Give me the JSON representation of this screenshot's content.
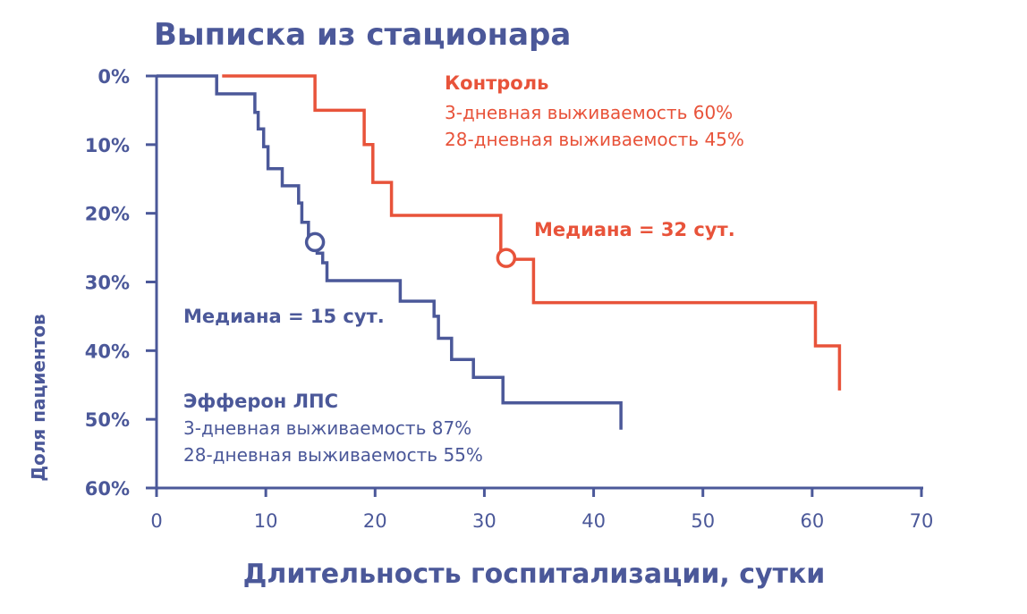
{
  "colors": {
    "axis": "#4b5899",
    "efferon": "#4b5899",
    "control": "#e8533a"
  },
  "chart_data": {
    "type": "line",
    "title": "Выписка из стационара",
    "xlabel": "Длительность госпитализации, сутки",
    "ylabel": "Доля пациентов",
    "xlim": [
      0,
      70
    ],
    "ylim": [
      0,
      60
    ],
    "y_inverted": true,
    "grid": false,
    "x_ticks": [
      "0",
      "10",
      "20",
      "30",
      "40",
      "50",
      "60",
      "70"
    ],
    "y_ticks": [
      "0%",
      "10%",
      "20%",
      "30%",
      "40%",
      "50%",
      "60%"
    ],
    "series": [
      {
        "key": "control",
        "name": "Контроль",
        "color": "#e8533a",
        "step": true,
        "points": [
          [
            6,
            0
          ],
          [
            14.5,
            0
          ],
          [
            14.5,
            5
          ],
          [
            19,
            5
          ],
          [
            19,
            10
          ],
          [
            19.8,
            10
          ],
          [
            19.8,
            15.5
          ],
          [
            21.5,
            15.5
          ],
          [
            21.5,
            20.3
          ],
          [
            31.5,
            20.3
          ],
          [
            31.5,
            26.7
          ],
          [
            34.5,
            26.7
          ],
          [
            34.5,
            33
          ],
          [
            60.3,
            33
          ],
          [
            60.3,
            39.3
          ],
          [
            62.5,
            39.3
          ],
          [
            62.5,
            45.8
          ]
        ],
        "median": {
          "x": 32,
          "y": 26.5,
          "label": "Медиана = 32 сут."
        },
        "legend": {
          "title": "Контроль",
          "lines": [
            "3-дневная выживаемость 60%",
            "28-дневная выживаемость 45%"
          ]
        }
      },
      {
        "key": "efferon",
        "name": "Эфферон ЛПС",
        "color": "#4b5899",
        "step": true,
        "points": [
          [
            0,
            0
          ],
          [
            5.5,
            0
          ],
          [
            5.5,
            2.6
          ],
          [
            9,
            2.6
          ],
          [
            9,
            5.3
          ],
          [
            9.3,
            5.3
          ],
          [
            9.3,
            7.7
          ],
          [
            9.8,
            7.7
          ],
          [
            9.8,
            10.3
          ],
          [
            10.2,
            10.3
          ],
          [
            10.2,
            13.5
          ],
          [
            11.5,
            13.5
          ],
          [
            11.5,
            16
          ],
          [
            13,
            16
          ],
          [
            13,
            18.5
          ],
          [
            13.3,
            18.5
          ],
          [
            13.3,
            21.3
          ],
          [
            13.9,
            21.3
          ],
          [
            13.9,
            23.6
          ],
          [
            14.7,
            23.6
          ],
          [
            14.7,
            25.8
          ],
          [
            15.2,
            25.8
          ],
          [
            15.2,
            27.2
          ],
          [
            15.6,
            27.2
          ],
          [
            15.6,
            29.8
          ],
          [
            22.3,
            29.8
          ],
          [
            22.3,
            32.8
          ],
          [
            25.4,
            32.8
          ],
          [
            25.4,
            35
          ],
          [
            25.8,
            35
          ],
          [
            25.8,
            38.2
          ],
          [
            27,
            38.2
          ],
          [
            27,
            41.3
          ],
          [
            29,
            41.3
          ],
          [
            29,
            43.9
          ],
          [
            31.7,
            43.9
          ],
          [
            31.7,
            47.6
          ],
          [
            42.5,
            47.6
          ],
          [
            42.5,
            51.5
          ]
        ],
        "median": {
          "x": 14.5,
          "y": 24.2,
          "label": "Медиана = 15 сут."
        },
        "legend": {
          "title": "Эфферон ЛПС",
          "lines": [
            "3-дневная выживаемость 87%",
            "28-дневная выживаемость 55%"
          ]
        }
      }
    ]
  }
}
